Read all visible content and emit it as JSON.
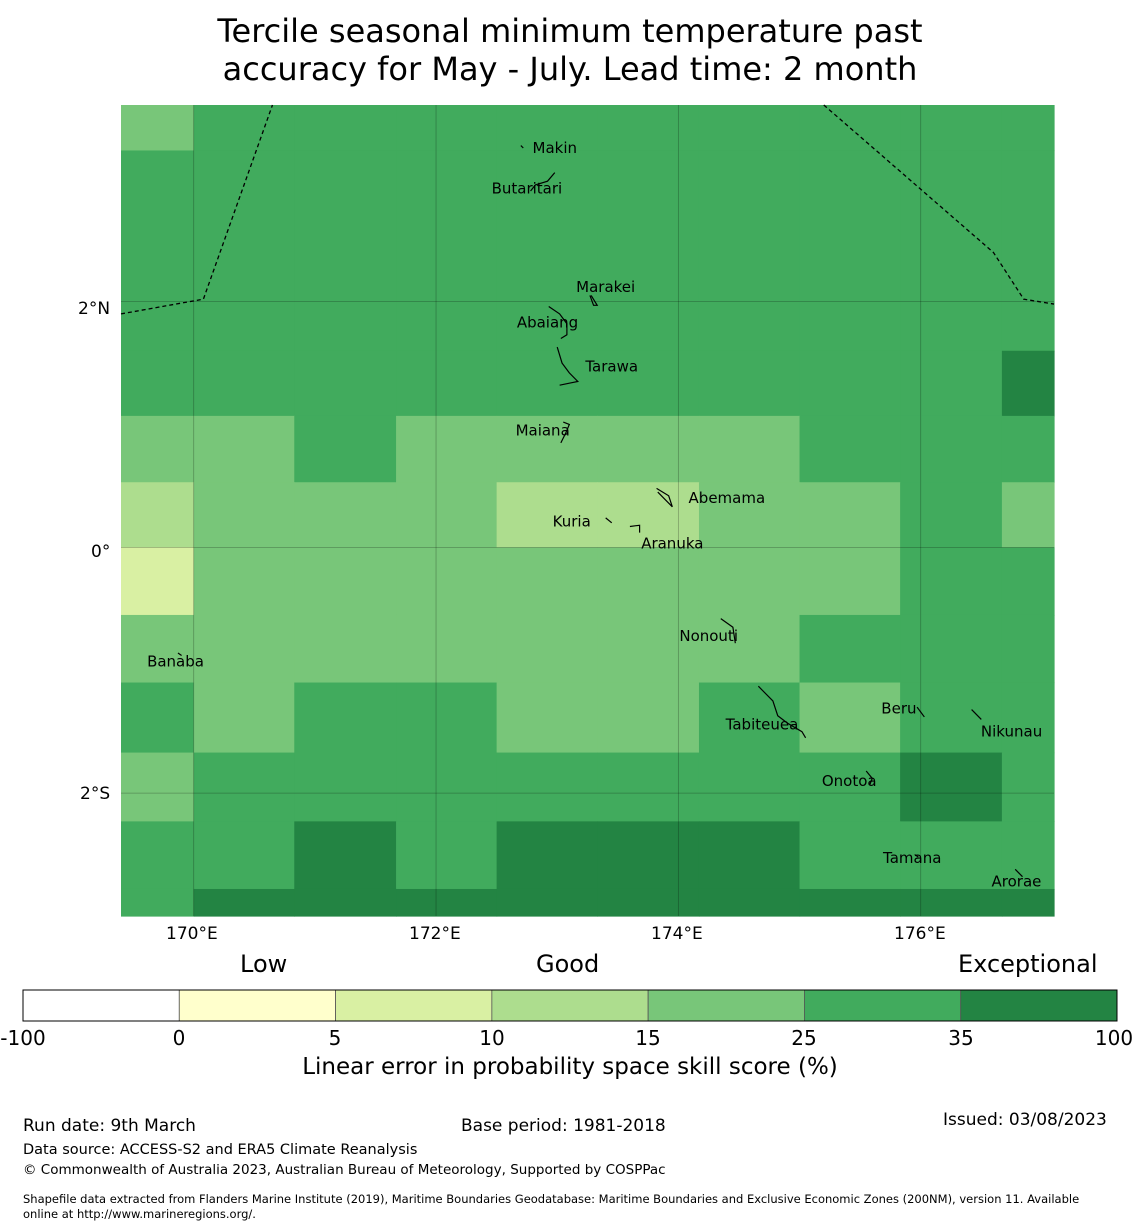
{
  "title": {
    "line1": "Tercile seasonal minimum temperature past",
    "line2": "accuracy for May - July. Lead time: 2 month"
  },
  "colors": {
    "bins": [
      "#ffffff",
      "#ffffcc",
      "#d9f0a3",
      "#addd8e",
      "#78c679",
      "#41ab5d",
      "#238443"
    ]
  },
  "map_data": {
    "lon_range": [
      169.4,
      177.1
    ],
    "lat_range": [
      -3.0,
      3.6
    ],
    "grid": {
      "lon_edges": [
        169.4,
        170.0,
        170.83,
        171.67,
        172.5,
        173.33,
        174.17,
        175.0,
        175.83,
        176.67,
        177.1
      ],
      "lat_edges": [
        3.6,
        3.23,
        1.6,
        1.07,
        0.53,
        0.0,
        -0.55,
        -1.1,
        -1.67,
        -2.23,
        -2.78,
        -3.0
      ],
      "bins": [
        [
          4,
          5,
          5,
          5,
          5,
          5,
          5,
          5,
          5,
          5
        ],
        [
          5,
          5,
          5,
          5,
          5,
          5,
          5,
          5,
          5,
          5
        ],
        [
          5,
          5,
          5,
          5,
          5,
          5,
          5,
          5,
          5,
          6
        ],
        [
          4,
          4,
          5,
          4,
          4,
          4,
          4,
          5,
          5,
          5
        ],
        [
          3,
          4,
          4,
          4,
          3,
          3,
          4,
          4,
          5,
          4
        ],
        [
          2,
          4,
          4,
          4,
          4,
          4,
          4,
          4,
          5,
          5
        ],
        [
          4,
          4,
          4,
          4,
          4,
          4,
          4,
          5,
          5,
          5
        ],
        [
          5,
          4,
          5,
          5,
          4,
          4,
          5,
          4,
          5,
          5
        ],
        [
          4,
          5,
          5,
          5,
          5,
          5,
          5,
          5,
          6,
          5
        ],
        [
          5,
          5,
          6,
          5,
          6,
          6,
          6,
          5,
          5,
          5
        ],
        [
          5,
          6,
          6,
          6,
          6,
          6,
          6,
          6,
          6,
          6
        ]
      ]
    },
    "x_ticks": [
      170,
      172,
      174,
      176
    ],
    "x_tick_labels": [
      "170°E",
      "172°E",
      "174°E",
      "176°E"
    ],
    "y_ticks": [
      2,
      0,
      -2
    ],
    "y_tick_labels": [
      "2°N",
      "0°",
      "2°S"
    ],
    "places": [
      {
        "name": "Makin",
        "lon": 172.98,
        "lat": 3.25
      },
      {
        "name": "Butaritari",
        "lon": 172.75,
        "lat": 2.92
      },
      {
        "name": "Marakei",
        "lon": 173.4,
        "lat": 2.12
      },
      {
        "name": "Abaiang",
        "lon": 172.92,
        "lat": 1.83
      },
      {
        "name": "Tarawa",
        "lon": 173.45,
        "lat": 1.47
      },
      {
        "name": "Maiana",
        "lon": 172.88,
        "lat": 0.95
      },
      {
        "name": "Abemama",
        "lon": 174.4,
        "lat": 0.4
      },
      {
        "name": "Kuria",
        "lon": 173.12,
        "lat": 0.21
      },
      {
        "name": "Aranuka",
        "lon": 173.95,
        "lat": 0.03
      },
      {
        "name": "Nonouti",
        "lon": 174.25,
        "lat": -0.72
      },
      {
        "name": "Banaba",
        "lon": 169.85,
        "lat": -0.93
      },
      {
        "name": "Beru",
        "lon": 175.82,
        "lat": -1.31
      },
      {
        "name": "Tabiteuea",
        "lon": 174.69,
        "lat": -1.44
      },
      {
        "name": "Nikunau",
        "lon": 176.75,
        "lat": -1.5
      },
      {
        "name": "Onotoa",
        "lon": 175.41,
        "lat": -1.9
      },
      {
        "name": "Tamana",
        "lon": 175.93,
        "lat": -2.53
      },
      {
        "name": "Arorae",
        "lon": 176.79,
        "lat": -2.72
      }
    ],
    "islands": [
      [
        [
          172.7,
          3.27
        ],
        [
          172.72,
          3.25
        ]
      ],
      [
        [
          172.98,
          3.05
        ],
        [
          172.92,
          2.98
        ],
        [
          172.82,
          2.95
        ],
        [
          172.78,
          2.9
        ]
      ],
      [
        [
          173.27,
          2.05
        ],
        [
          173.3,
          1.97
        ],
        [
          173.33,
          1.97
        ],
        [
          173.28,
          2.05
        ]
      ],
      [
        [
          172.93,
          1.96
        ],
        [
          173.02,
          1.9
        ],
        [
          173.08,
          1.82
        ],
        [
          173.08,
          1.73
        ],
        [
          173.03,
          1.7
        ]
      ],
      [
        [
          173.0,
          1.63
        ],
        [
          173.04,
          1.5
        ],
        [
          173.1,
          1.42
        ],
        [
          173.17,
          1.35
        ],
        [
          173.12,
          1.34
        ],
        [
          173.02,
          1.32
        ]
      ],
      [
        [
          173.05,
          1.02
        ],
        [
          173.1,
          1.0
        ],
        [
          173.07,
          0.93
        ],
        [
          173.03,
          0.85
        ]
      ],
      [
        [
          173.82,
          0.48
        ],
        [
          173.92,
          0.42
        ],
        [
          173.95,
          0.33
        ],
        [
          173.9,
          0.38
        ],
        [
          173.83,
          0.45
        ]
      ],
      [
        [
          173.4,
          0.24
        ],
        [
          173.45,
          0.2
        ]
      ],
      [
        [
          173.6,
          0.17
        ],
        [
          173.68,
          0.18
        ],
        [
          173.68,
          0.12
        ]
      ],
      [
        [
          174.35,
          -0.58
        ],
        [
          174.45,
          -0.65
        ],
        [
          174.47,
          -0.78
        ]
      ],
      [
        [
          174.66,
          -1.13
        ],
        [
          174.78,
          -1.25
        ],
        [
          174.82,
          -1.37
        ],
        [
          174.9,
          -1.43
        ],
        [
          175.02,
          -1.5
        ],
        [
          175.05,
          -1.55
        ]
      ],
      [
        [
          175.97,
          -1.3
        ],
        [
          176.03,
          -1.38
        ]
      ],
      [
        [
          176.42,
          -1.32
        ],
        [
          176.5,
          -1.4
        ]
      ],
      [
        [
          175.55,
          -1.82
        ],
        [
          175.6,
          -1.88
        ],
        [
          175.58,
          -1.93
        ]
      ],
      [
        [
          175.95,
          -2.5
        ],
        [
          175.98,
          -2.52
        ]
      ],
      [
        [
          176.78,
          -2.62
        ],
        [
          176.84,
          -2.68
        ]
      ],
      [
        [
          169.87,
          -0.86
        ],
        [
          169.9,
          -0.88
        ]
      ]
    ],
    "eez_boundaries": [
      [
        [
          169.4,
          1.9
        ],
        [
          170.08,
          2.02
        ],
        [
          170.65,
          3.6
        ]
      ],
      [
        [
          175.2,
          3.6
        ],
        [
          176.6,
          2.4
        ],
        [
          176.85,
          2.02
        ],
        [
          177.1,
          1.98
        ]
      ]
    ]
  },
  "colorbar": {
    "categories": [
      "Low",
      "Good",
      "Exceptional"
    ],
    "boundaries": [
      "-100",
      "0",
      "5",
      "10",
      "15",
      "25",
      "35",
      "100"
    ],
    "label": "Linear error in probability space skill score (%)"
  },
  "footer": {
    "run_date": "Run date: 9th March",
    "base_period": "Base period: 1981-2018",
    "issued": "Issued: 03/08/2023",
    "data_source": "Data source: ACCESS-S2 and ERA5 Climate Reanalysis",
    "copyright": "© Commonwealth of Australia 2023, Australian Bureau of Meteorology, Supported by COSPPac",
    "shapefile_line1": "Shapefile data extracted from Flanders Marine Institute (2019), Maritime Boundaries Geodatabase: Maritime Boundaries and Exclusive Economic Zones (200NM), version 11. Available",
    "shapefile_line2": "online at http://www.marineregions.org/."
  }
}
